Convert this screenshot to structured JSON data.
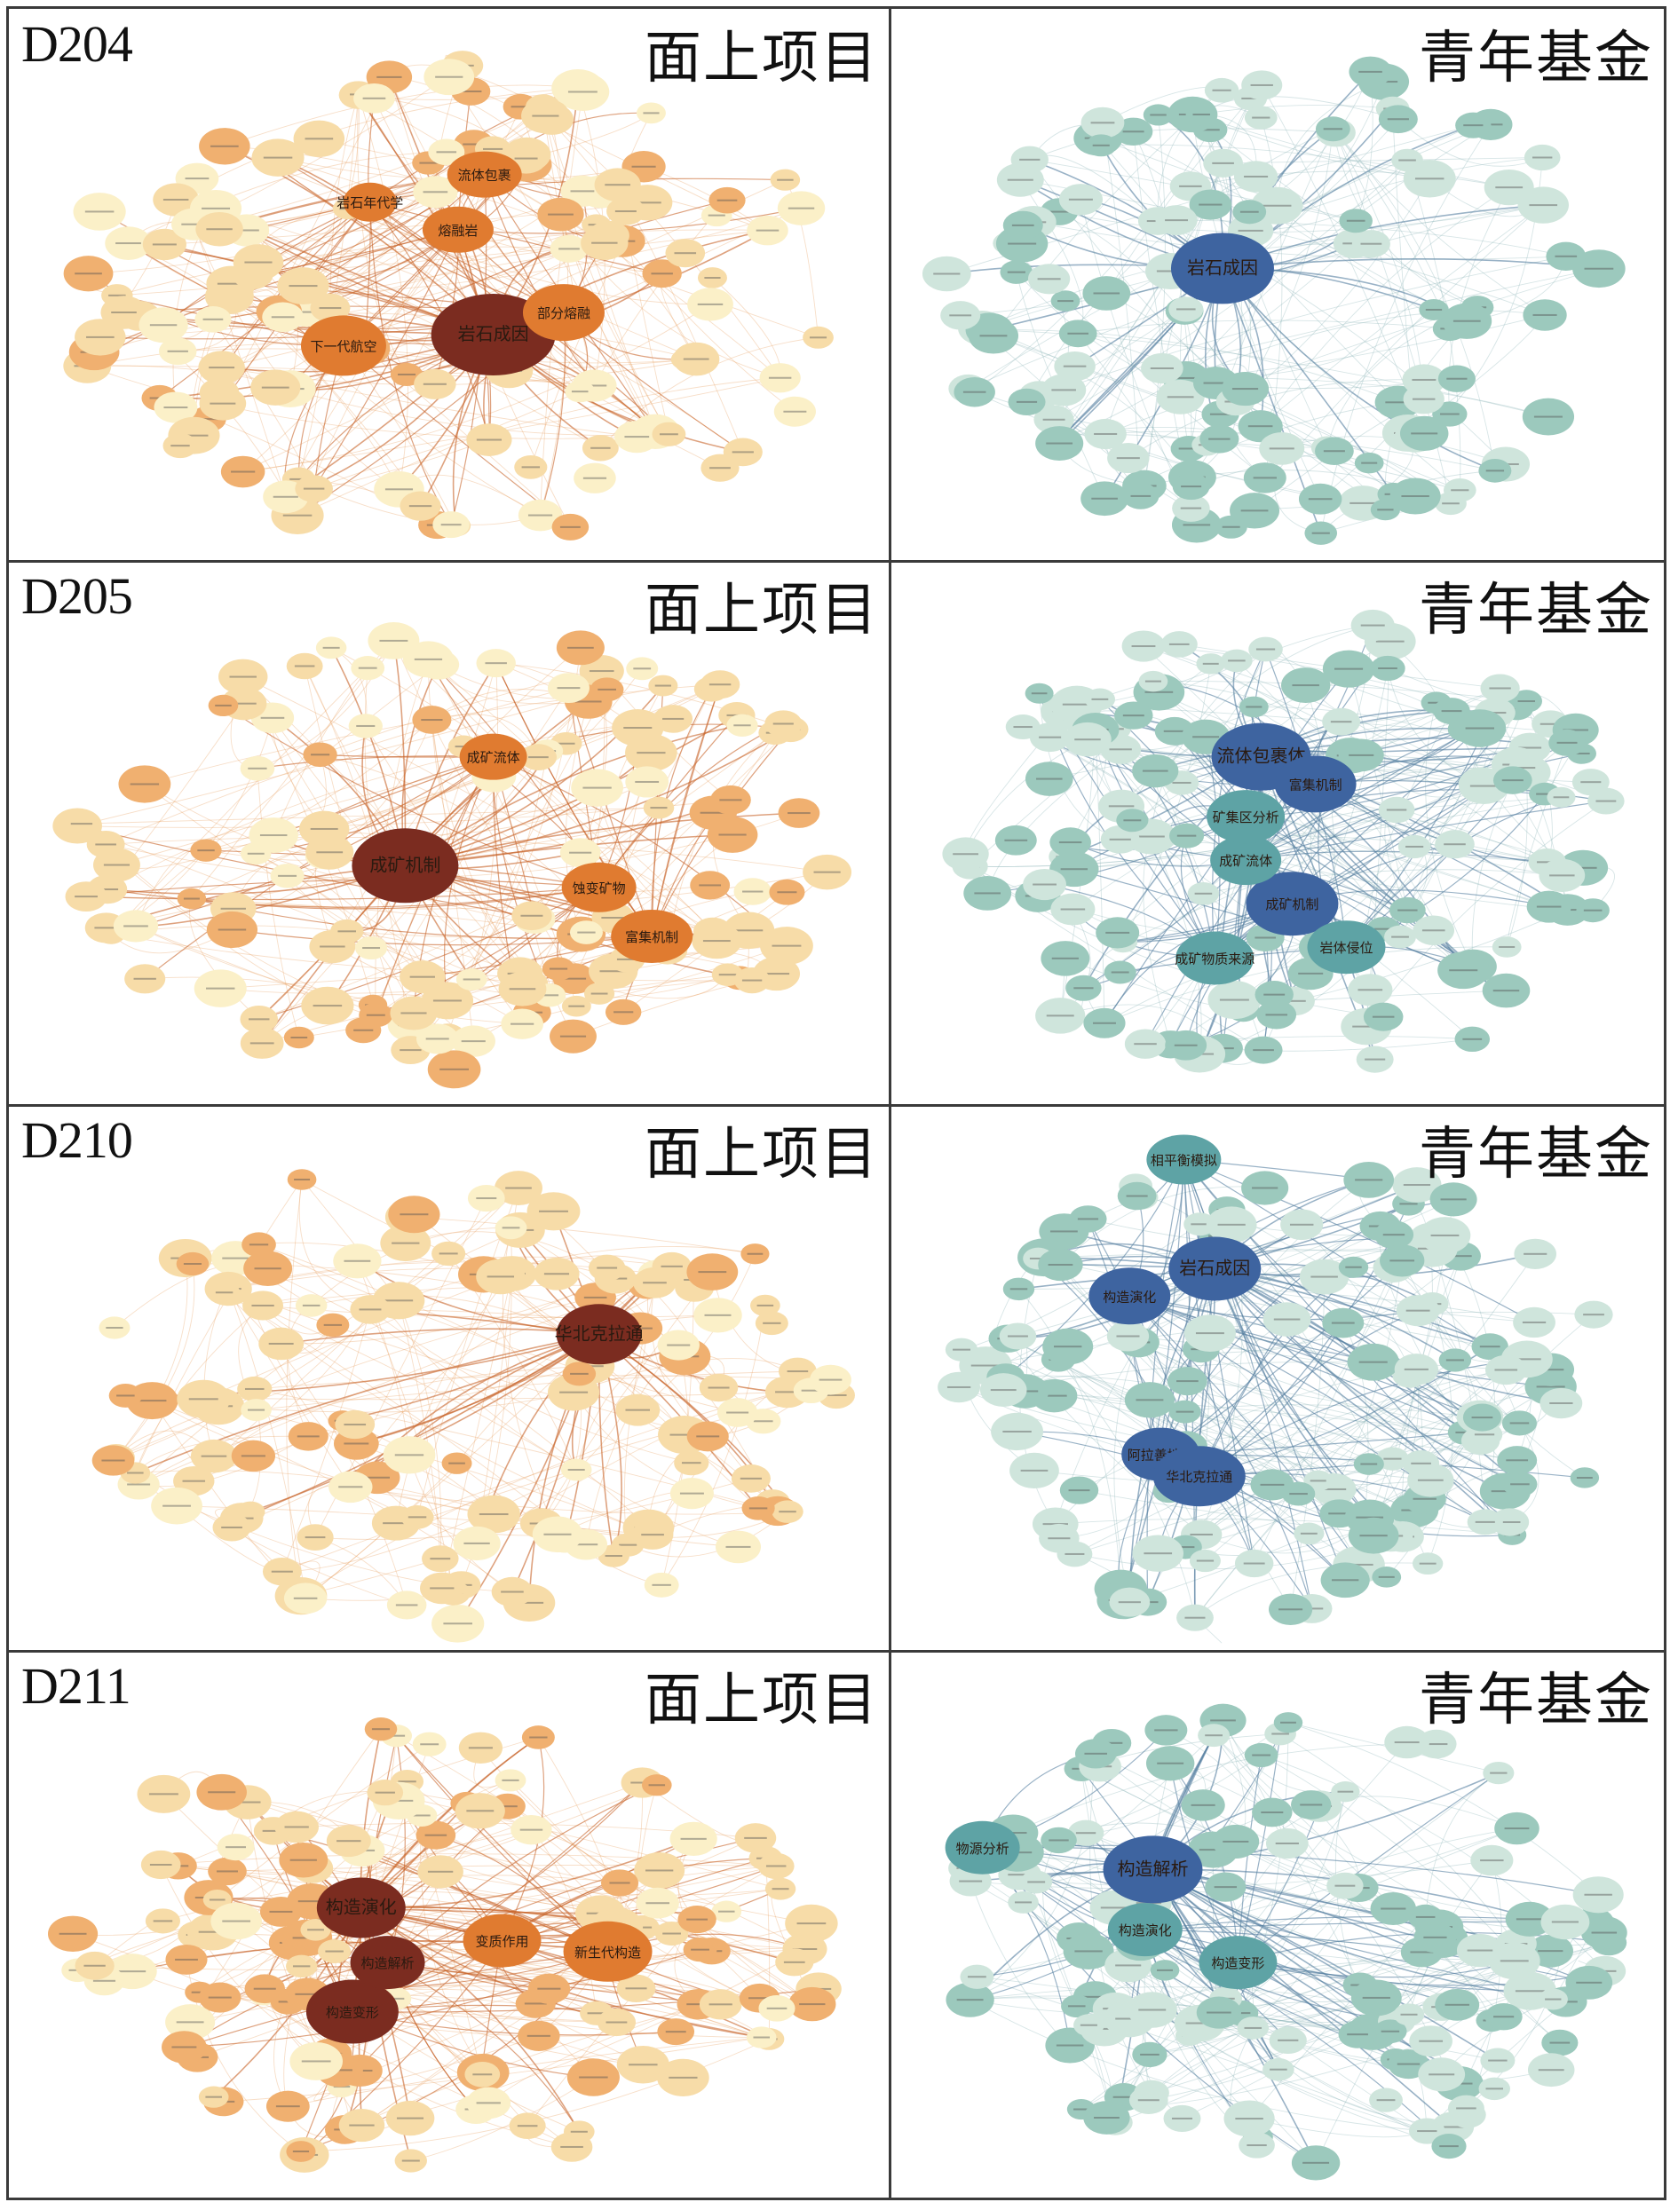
{
  "columns": [
    "面上项目",
    "青年基金"
  ],
  "rows": [
    {
      "code": "D204",
      "panels": [
        {
          "palette": "orange",
          "major_nodes": [
            {
              "label": "岩石成因"
            },
            {
              "label": "下一代航空"
            },
            {
              "label": "部分熔融"
            },
            {
              "label": "流体包裹"
            },
            {
              "label": "熔融岩"
            },
            {
              "label": "岩石年代学"
            }
          ]
        },
        {
          "palette": "blue",
          "major_nodes": [
            {
              "label": "岩石成因"
            }
          ]
        }
      ]
    },
    {
      "code": "D205",
      "panels": [
        {
          "palette": "orange",
          "major_nodes": [
            {
              "label": "成矿机制"
            },
            {
              "label": "富集机制"
            },
            {
              "label": "蚀变矿物"
            },
            {
              "label": "成矿流体"
            }
          ]
        },
        {
          "palette": "blue",
          "major_nodes": [
            {
              "label": "流体包裹体"
            },
            {
              "label": "富集机制"
            },
            {
              "label": "成矿机制"
            },
            {
              "label": "成矿流体"
            },
            {
              "label": "岩体侵位"
            },
            {
              "label": "成矿物质来源"
            },
            {
              "label": "矿集区分析"
            }
          ]
        }
      ]
    },
    {
      "code": "D210",
      "panels": [
        {
          "palette": "orange",
          "major_nodes": [
            {
              "label": "华北克拉通"
            }
          ]
        },
        {
          "palette": "blue",
          "major_nodes": [
            {
              "label": "岩石成因"
            },
            {
              "label": "构造演化"
            },
            {
              "label": "阿拉善地块"
            },
            {
              "label": "华北克拉通"
            },
            {
              "label": "相平衡模拟"
            }
          ]
        }
      ]
    },
    {
      "code": "D211",
      "panels": [
        {
          "palette": "orange",
          "major_nodes": [
            {
              "label": "构造演化"
            },
            {
              "label": "构造变形"
            },
            {
              "label": "构造解析"
            },
            {
              "label": "变质作用"
            },
            {
              "label": "新生代构造"
            }
          ]
        },
        {
          "palette": "blue",
          "major_nodes": [
            {
              "label": "构造解析"
            },
            {
              "label": "构造演化"
            },
            {
              "label": "构造变形"
            },
            {
              "label": "物源分析"
            }
          ]
        }
      ]
    }
  ],
  "colors": {
    "orange_strong": "#7b2c20",
    "orange_mid": "#e07b30",
    "orange_light": "#f0b070",
    "orange_pale": "#f7dca8",
    "orange_faint": "#fbf0c8",
    "orange_edge": "#e9a060",
    "blue_strong": "#3e64a0",
    "blue_mid": "#5ea3a5",
    "blue_light": "#9cc9bd",
    "blue_pale": "#cfe5dc",
    "blue_edge": "#8db5b8"
  }
}
